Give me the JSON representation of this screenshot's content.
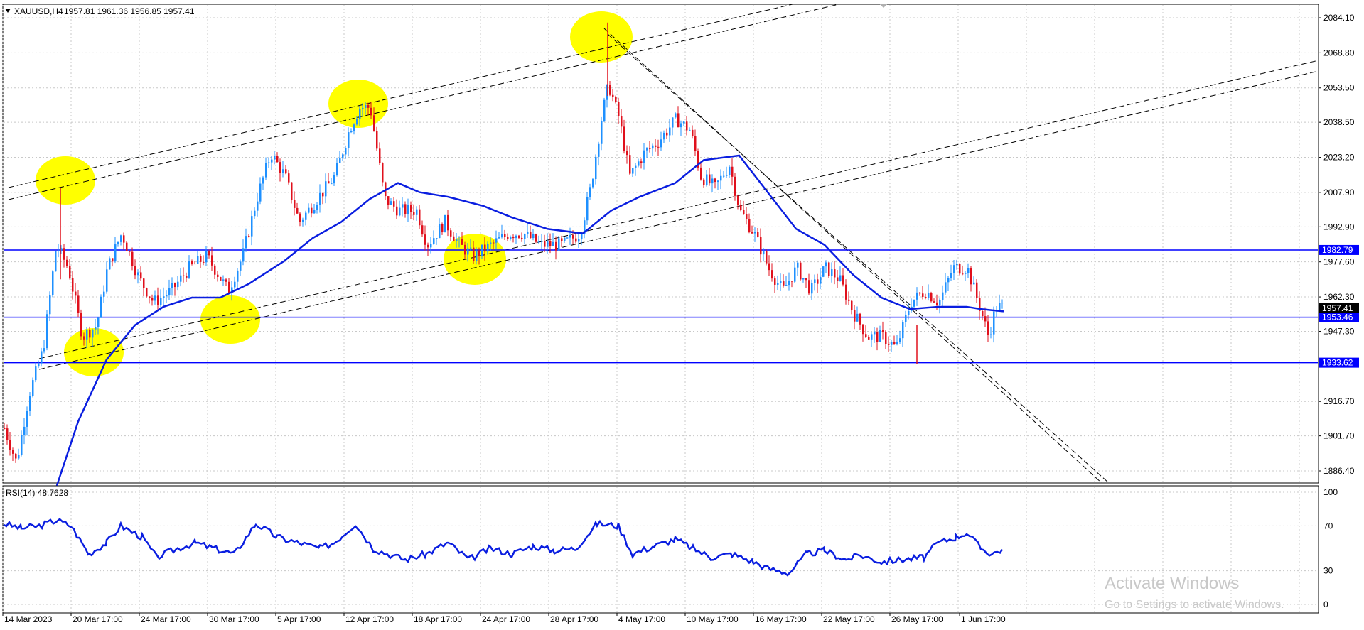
{
  "header": {
    "symbol_label": "XAUUSD,H4",
    "ohlc_text": "1957.81 1961.36 1956.85 1957.41"
  },
  "price_axis": {
    "ticks": [
      "2084.10",
      "2068.80",
      "2053.50",
      "2038.50",
      "2023.20",
      "2007.90",
      "1992.90",
      "1977.60",
      "1962.30",
      "1947.30",
      "1916.70",
      "1901.70",
      "1886.40"
    ],
    "tick_values": [
      2084.1,
      2068.8,
      2053.5,
      2038.5,
      2023.2,
      2007.9,
      1992.9,
      1977.6,
      1962.3,
      1947.3,
      1916.7,
      1901.7,
      1886.4
    ]
  },
  "levels": [
    {
      "value": 1982.79,
      "label": "1982.79"
    },
    {
      "value": 1953.46,
      "label": "1953.46"
    },
    {
      "value": 1933.62,
      "label": "1933.62"
    }
  ],
  "current_price": {
    "value": 1957.41,
    "label": "1957.41"
  },
  "rsi": {
    "label": "RSI(14) 48.7628",
    "ticks": [
      "100",
      "70",
      "30",
      "0"
    ],
    "tick_values": [
      100,
      70,
      30,
      0
    ]
  },
  "time_axis": {
    "labels": [
      "14 Mar 2023",
      "20 Mar 17:00",
      "24 Mar 17:00",
      "30 Mar 17:00",
      "5 Apr 17:00",
      "12 Apr 17:00",
      "18 Apr 17:00",
      "24 Apr 17:00",
      "28 Apr 17:00",
      "4 May 17:00",
      "10 May 17:00",
      "16 May 17:00",
      "22 May 17:00",
      "26 May 17:00",
      "1 Jun 17:00"
    ]
  },
  "watermark": {
    "line1": "Activate Windows",
    "line2": "Go to Settings to activate Windows."
  },
  "colors": {
    "up": "#1e90ff",
    "down": "#e0101c",
    "ma": "#0a1ee0",
    "level": "#0000ff",
    "highlight": "#ffff00",
    "grid": "#c8c8c8"
  },
  "chart_data": {
    "type": "line",
    "title": "XAUUSD,H4",
    "ylim": [
      1880,
      2090
    ],
    "x": [
      "14 Mar 2023",
      "20 Mar 17:00",
      "24 Mar 17:00",
      "30 Mar 17:00",
      "5 Apr 17:00",
      "12 Apr 17:00",
      "18 Apr 17:00",
      "24 Apr 17:00",
      "28 Apr 17:00",
      "4 May 17:00",
      "10 May 17:00",
      "16 May 17:00",
      "22 May 17:00",
      "26 May 17:00",
      "1 Jun 17:00"
    ],
    "series": [
      {
        "values": [
          1905,
          1985,
          1955,
          1955,
          2030,
          2045,
          1980,
          1978,
          1992,
          2050,
          2038,
          1985,
          1950,
          1960,
          1958
        ]
      },
      {
        "values": [
          1860,
          1935,
          1960,
          1962,
          1990,
          2008,
          2010,
          1995,
          1990,
          2006,
          2025,
          2000,
          1968,
          1958,
          1957
        ]
      }
    ],
    "levels": [
      1982.79,
      1953.46,
      1933.62
    ],
    "rsi": {
      "ylim": [
        0,
        100
      ],
      "values": [
        70,
        72,
        45,
        40,
        72,
        70,
        40,
        45,
        48,
        76,
        58,
        32,
        50,
        48,
        48.76
      ]
    }
  }
}
